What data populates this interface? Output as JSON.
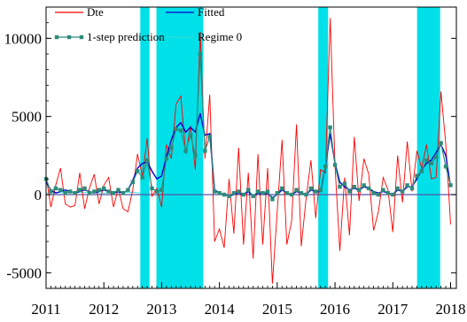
{
  "chart_data": {
    "type": "line",
    "xlim": [
      2011.0,
      2018.1
    ],
    "ylim": [
      -6000,
      12000
    ],
    "x_ticks": [
      2011,
      2012,
      2013,
      2014,
      2015,
      2016,
      2017,
      2018
    ],
    "x_tick_labels": [
      "2011",
      "2012",
      "2013",
      "2014",
      "2015",
      "2016",
      "2017",
      "2018"
    ],
    "y_ticks": [
      -5000,
      0,
      5000,
      10000
    ],
    "y_tick_labels": [
      "-5000",
      "0",
      "5000",
      "10000"
    ],
    "legend": {
      "placement": "top-left",
      "entries": [
        {
          "label": "Dte",
          "color": "#ff0000",
          "style": "line"
        },
        {
          "label": "Fitted",
          "color": "#0000cc",
          "style": "line"
        },
        {
          "label": "1-step prediction",
          "color": "#2e8b7a",
          "style": "line-marker"
        },
        {
          "label": "Regime 0",
          "color": "#33dddd",
          "style": "line"
        }
      ]
    },
    "regime_shading": {
      "color": "#00e0e8",
      "intervals": [
        [
          2012.63,
          2012.79
        ],
        [
          2012.91,
          2013.72
        ],
        [
          2015.71,
          2015.88
        ],
        [
          2017.42,
          2017.82
        ]
      ]
    },
    "series": [
      {
        "name": "Dte",
        "color": "#ff0000",
        "x": [
          2011.0,
          2011.083,
          2011.167,
          2011.25,
          2011.333,
          2011.417,
          2011.5,
          2011.583,
          2011.667,
          2011.75,
          2011.833,
          2011.917,
          2012.0,
          2012.083,
          2012.167,
          2012.25,
          2012.333,
          2012.417,
          2012.5,
          2012.583,
          2012.667,
          2012.75,
          2012.833,
          2012.917,
          2013.0,
          2013.083,
          2013.167,
          2013.25,
          2013.333,
          2013.417,
          2013.5,
          2013.583,
          2013.667,
          2013.75,
          2013.833,
          2013.917,
          2014.0,
          2014.083,
          2014.167,
          2014.25,
          2014.333,
          2014.417,
          2014.5,
          2014.583,
          2014.667,
          2014.75,
          2014.833,
          2014.917,
          2015.0,
          2015.083,
          2015.167,
          2015.25,
          2015.333,
          2015.417,
          2015.5,
          2015.583,
          2015.667,
          2015.75,
          2015.833,
          2015.917,
          2016.0,
          2016.083,
          2016.167,
          2016.25,
          2016.333,
          2016.417,
          2016.5,
          2016.583,
          2016.667,
          2016.75,
          2016.833,
          2016.917,
          2017.0,
          2017.083,
          2017.167,
          2017.25,
          2017.333,
          2017.417,
          2017.5,
          2017.583,
          2017.667,
          2017.75,
          2017.833,
          2017.917,
          2018.0
        ],
        "values": [
          1200,
          -800,
          600,
          1700,
          -600,
          -800,
          -700,
          1400,
          -900,
          400,
          1300,
          -600,
          600,
          1100,
          -800,
          400,
          -900,
          -1100,
          300,
          2600,
          1200,
          3600,
          -100,
          400,
          -800,
          3200,
          2300,
          5800,
          6300,
          2600,
          4400,
          1600,
          10400,
          2300,
          6400,
          -3000,
          -2200,
          -3400,
          1000,
          -2500,
          3000,
          -3200,
          1400,
          -4100,
          2600,
          -3200,
          1700,
          -5700,
          -1100,
          3500,
          -3200,
          -1700,
          4500,
          -3300,
          -200,
          2200,
          -1500,
          1600,
          1400,
          11300,
          1800,
          -3600,
          1100,
          -2600,
          3700,
          -400,
          2300,
          1300,
          -2300,
          -1100,
          1100,
          300,
          -2400,
          2500,
          -500,
          3400,
          200,
          2800,
          1700,
          3200,
          1000,
          1100,
          6600,
          3200,
          -1900
        ]
      },
      {
        "name": "Fitted",
        "color": "#0000cc",
        "x": [
          2011.0,
          2011.083,
          2011.167,
          2011.25,
          2011.333,
          2011.417,
          2011.5,
          2011.583,
          2011.667,
          2011.75,
          2011.833,
          2011.917,
          2012.0,
          2012.083,
          2012.167,
          2012.25,
          2012.333,
          2012.417,
          2012.5,
          2012.583,
          2012.667,
          2012.75,
          2012.833,
          2012.917,
          2013.0,
          2013.083,
          2013.167,
          2013.25,
          2013.333,
          2013.417,
          2013.5,
          2013.583,
          2013.667,
          2013.75,
          2013.833,
          2013.917,
          2014.0,
          2014.083,
          2014.167,
          2014.25,
          2014.333,
          2014.417,
          2014.5,
          2014.583,
          2014.667,
          2014.75,
          2014.833,
          2014.917,
          2015.0,
          2015.083,
          2015.167,
          2015.25,
          2015.333,
          2015.417,
          2015.5,
          2015.583,
          2015.667,
          2015.75,
          2015.833,
          2015.917,
          2016.0,
          2016.083,
          2016.167,
          2016.25,
          2016.333,
          2016.417,
          2016.5,
          2016.583,
          2016.667,
          2016.75,
          2016.833,
          2016.917,
          2017.0,
          2017.083,
          2017.167,
          2017.25,
          2017.333,
          2017.417,
          2017.5,
          2017.583,
          2017.667,
          2017.75,
          2017.833,
          2017.917,
          2018.0
        ],
        "values": [
          800,
          300,
          100,
          200,
          300,
          200,
          100,
          200,
          300,
          200,
          100,
          200,
          300,
          200,
          100,
          200,
          100,
          300,
          900,
          1700,
          2000,
          2100,
          1500,
          1000,
          1200,
          2400,
          3500,
          4300,
          4600,
          4000,
          4300,
          4000,
          5200,
          3800,
          3900,
          300,
          100,
          0,
          -100,
          0,
          100,
          0,
          200,
          -100,
          100,
          0,
          100,
          -200,
          0,
          300,
          100,
          0,
          200,
          100,
          0,
          300,
          200,
          200,
          1800,
          3900,
          2000,
          800,
          500,
          300,
          400,
          300,
          500,
          400,
          200,
          100,
          200,
          100,
          0,
          300,
          200,
          500,
          500,
          1000,
          1600,
          2000,
          2200,
          2700,
          3200,
          2500,
          500
        ]
      },
      {
        "name": "1-step prediction",
        "color": "#2e8b7a",
        "x": [
          2011.0,
          2011.083,
          2011.167,
          2011.25,
          2011.333,
          2011.417,
          2011.5,
          2011.583,
          2011.667,
          2011.75,
          2011.833,
          2011.917,
          2012.0,
          2012.083,
          2012.167,
          2012.25,
          2012.333,
          2012.417,
          2012.5,
          2012.583,
          2012.667,
          2012.75,
          2012.833,
          2012.917,
          2013.0,
          2013.083,
          2013.167,
          2013.25,
          2013.333,
          2013.417,
          2013.5,
          2013.583,
          2013.667,
          2013.75,
          2013.833,
          2013.917,
          2014.0,
          2014.083,
          2014.167,
          2014.25,
          2014.333,
          2014.417,
          2014.5,
          2014.583,
          2014.667,
          2014.75,
          2014.833,
          2014.917,
          2015.0,
          2015.083,
          2015.167,
          2015.25,
          2015.333,
          2015.417,
          2015.5,
          2015.583,
          2015.667,
          2015.75,
          2015.833,
          2015.917,
          2016.0,
          2016.083,
          2016.167,
          2016.25,
          2016.333,
          2016.417,
          2016.5,
          2016.583,
          2016.667,
          2016.75,
          2016.833,
          2016.917,
          2017.0,
          2017.083,
          2017.167,
          2017.25,
          2017.333,
          2017.417,
          2017.5,
          2017.583,
          2017.667,
          2017.75,
          2017.833,
          2017.917,
          2018.0
        ],
        "values": [
          1000,
          200,
          400,
          300,
          100,
          200,
          100,
          300,
          400,
          100,
          200,
          300,
          400,
          200,
          100,
          300,
          100,
          300,
          800,
          1500,
          1100,
          2200,
          400,
          200,
          300,
          2300,
          3000,
          4200,
          4100,
          2800,
          3800,
          2500,
          9000,
          2800,
          3700,
          200,
          100,
          0,
          -100,
          100,
          200,
          0,
          300,
          -100,
          200,
          100,
          200,
          -300,
          100,
          400,
          100,
          0,
          300,
          100,
          0,
          400,
          200,
          300,
          1800,
          4300,
          1900,
          500,
          700,
          200,
          500,
          300,
          600,
          400,
          100,
          0,
          300,
          100,
          0,
          400,
          200,
          600,
          400,
          1200,
          1500,
          2200,
          2000,
          2400,
          3300,
          1800,
          600
        ]
      },
      {
        "name": "Regime 0",
        "color": "#33dddd",
        "x": [
          2011.0,
          2011.5,
          2012.0,
          2012.5,
          2012.63
        ],
        "values": [
          100,
          150,
          100,
          150,
          100
        ]
      }
    ]
  }
}
